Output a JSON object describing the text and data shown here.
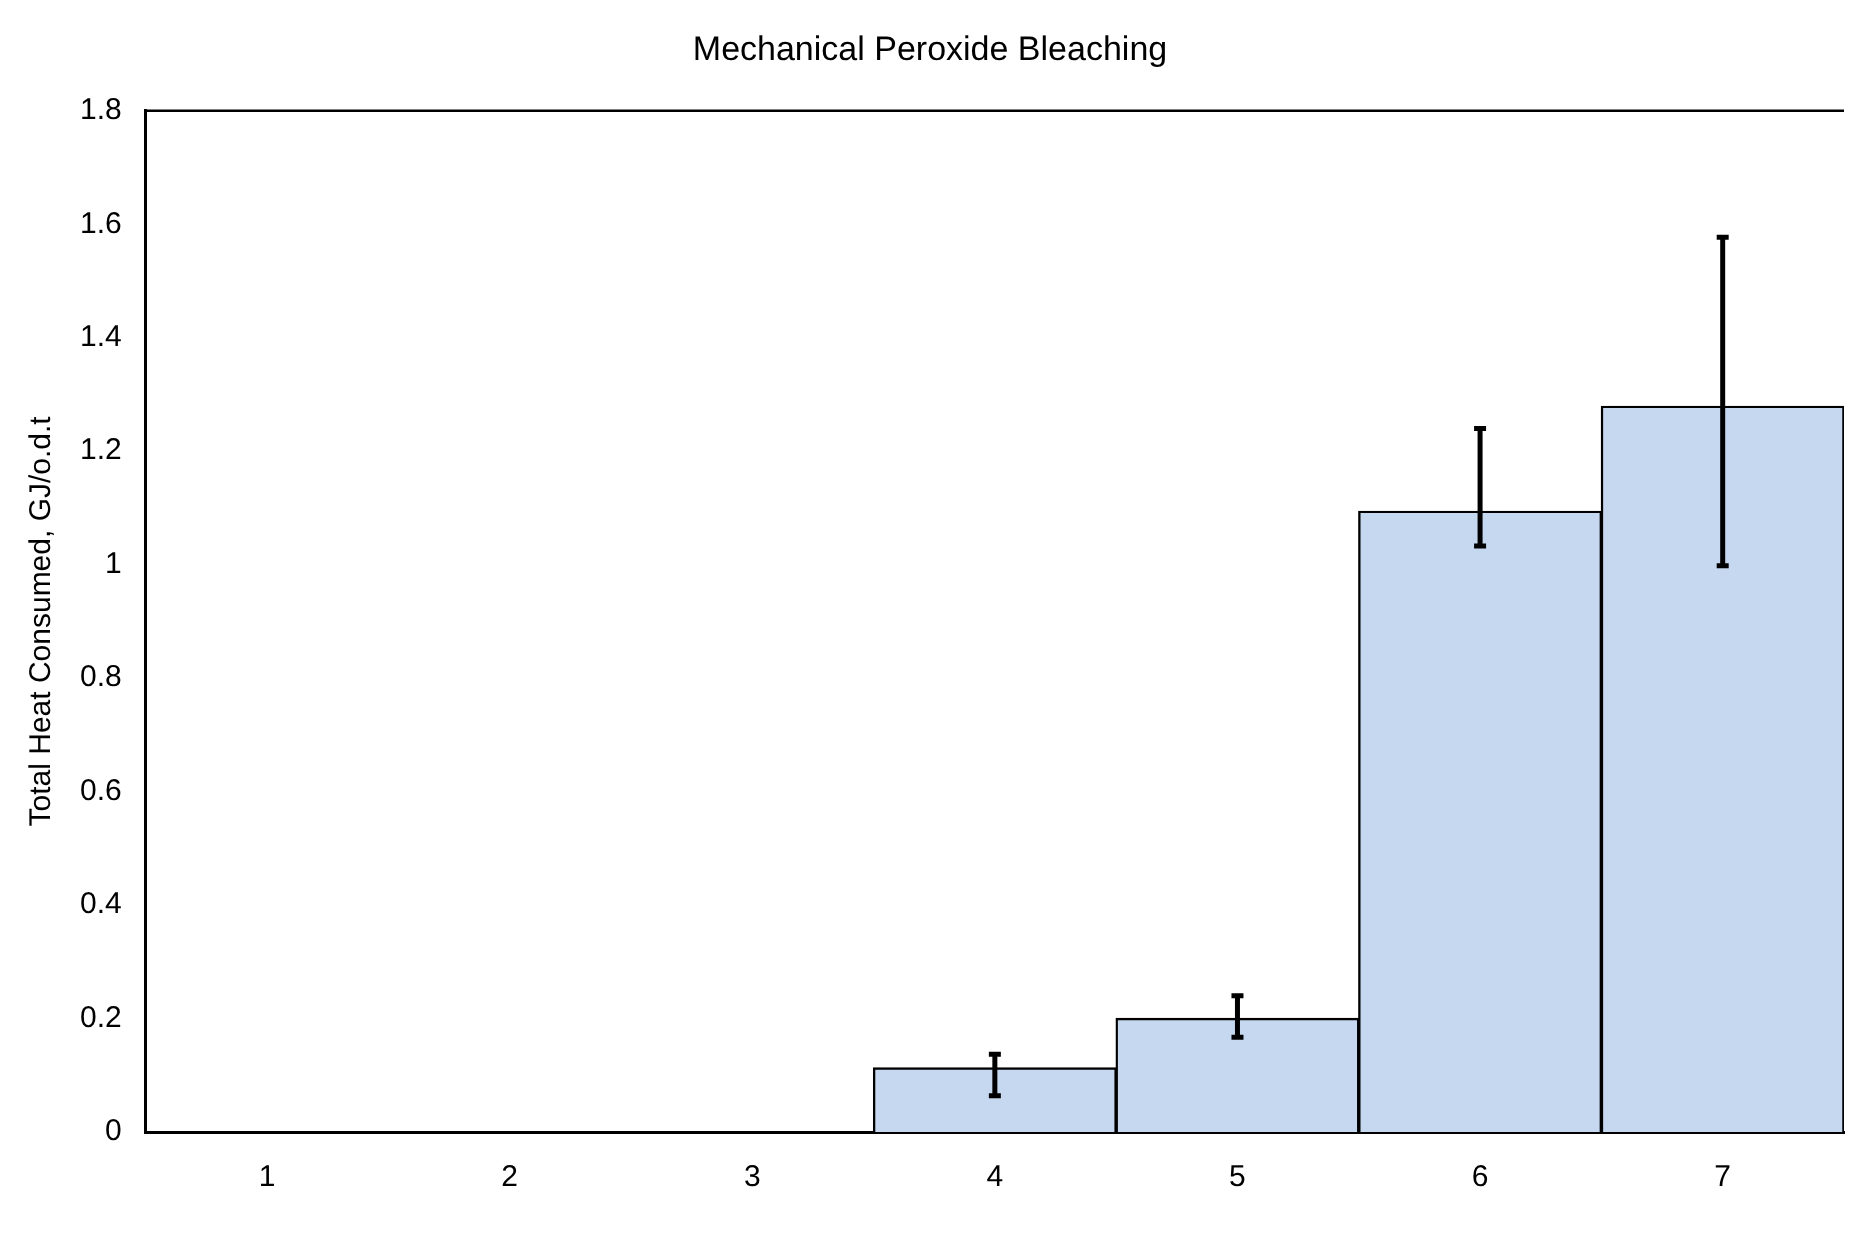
{
  "chart_data": {
    "type": "bar",
    "title": "Mechanical Peroxide Bleaching",
    "ylabel": "Total Heat Consumed, GJ/o.d.t",
    "categories": [
      "1",
      "2",
      "3",
      "4",
      "5",
      "6",
      "7"
    ],
    "values": [
      0,
      0,
      0,
      0.113,
      0.2,
      1.094,
      1.279
    ],
    "errors": [
      null,
      null,
      null,
      [
        0.064,
        0.137
      ],
      [
        0.167,
        0.24
      ],
      [
        1.033,
        1.24
      ],
      [
        0.998,
        1.577
      ]
    ],
    "color": "#c5d8ef",
    "ylim": [
      0,
      1.8
    ],
    "yticks": [
      0,
      0.2,
      0.4,
      0.6,
      0.8,
      1,
      1.2,
      1.4,
      1.6,
      1.8
    ],
    "grid": false,
    "legend": false
  }
}
